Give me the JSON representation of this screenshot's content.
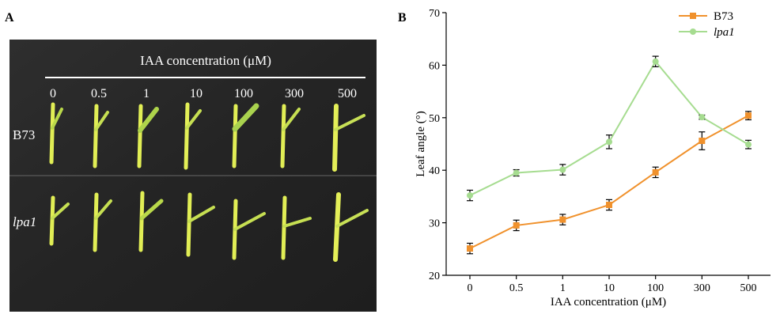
{
  "panel_a": {
    "label": "A",
    "header": "IAA concentration (μM)",
    "concentrations": [
      "0",
      "0.5",
      "1",
      "10",
      "100",
      "300",
      "500"
    ],
    "rows": [
      "B73",
      "lpa1"
    ]
  },
  "panel_b": {
    "label": "B"
  },
  "chart_data": {
    "type": "line",
    "title": "",
    "xlabel": "IAA concentration (μM)",
    "ylabel": "Leaf angle (°)",
    "categories": [
      "0",
      "0.5",
      "1",
      "10",
      "100",
      "300",
      "500"
    ],
    "ylim": [
      20,
      70
    ],
    "yticks": [
      20,
      30,
      40,
      50,
      60,
      70
    ],
    "legend_position": "top-right",
    "series": [
      {
        "name": "B73",
        "color": "#f0912c",
        "marker": "square",
        "values": [
          25.1,
          29.5,
          30.6,
          33.4,
          39.6,
          45.6,
          50.4
        ],
        "errors": [
          1.0,
          1.0,
          1.0,
          1.0,
          1.0,
          1.7,
          0.8
        ]
      },
      {
        "name": "lpa1",
        "color": "#a6dc90",
        "marker": "circle",
        "values": [
          35.2,
          39.5,
          40.1,
          45.4,
          60.7,
          50.1,
          44.9
        ],
        "errors": [
          1.0,
          0.6,
          1.0,
          1.3,
          1.0,
          0.4,
          0.8
        ]
      }
    ]
  }
}
